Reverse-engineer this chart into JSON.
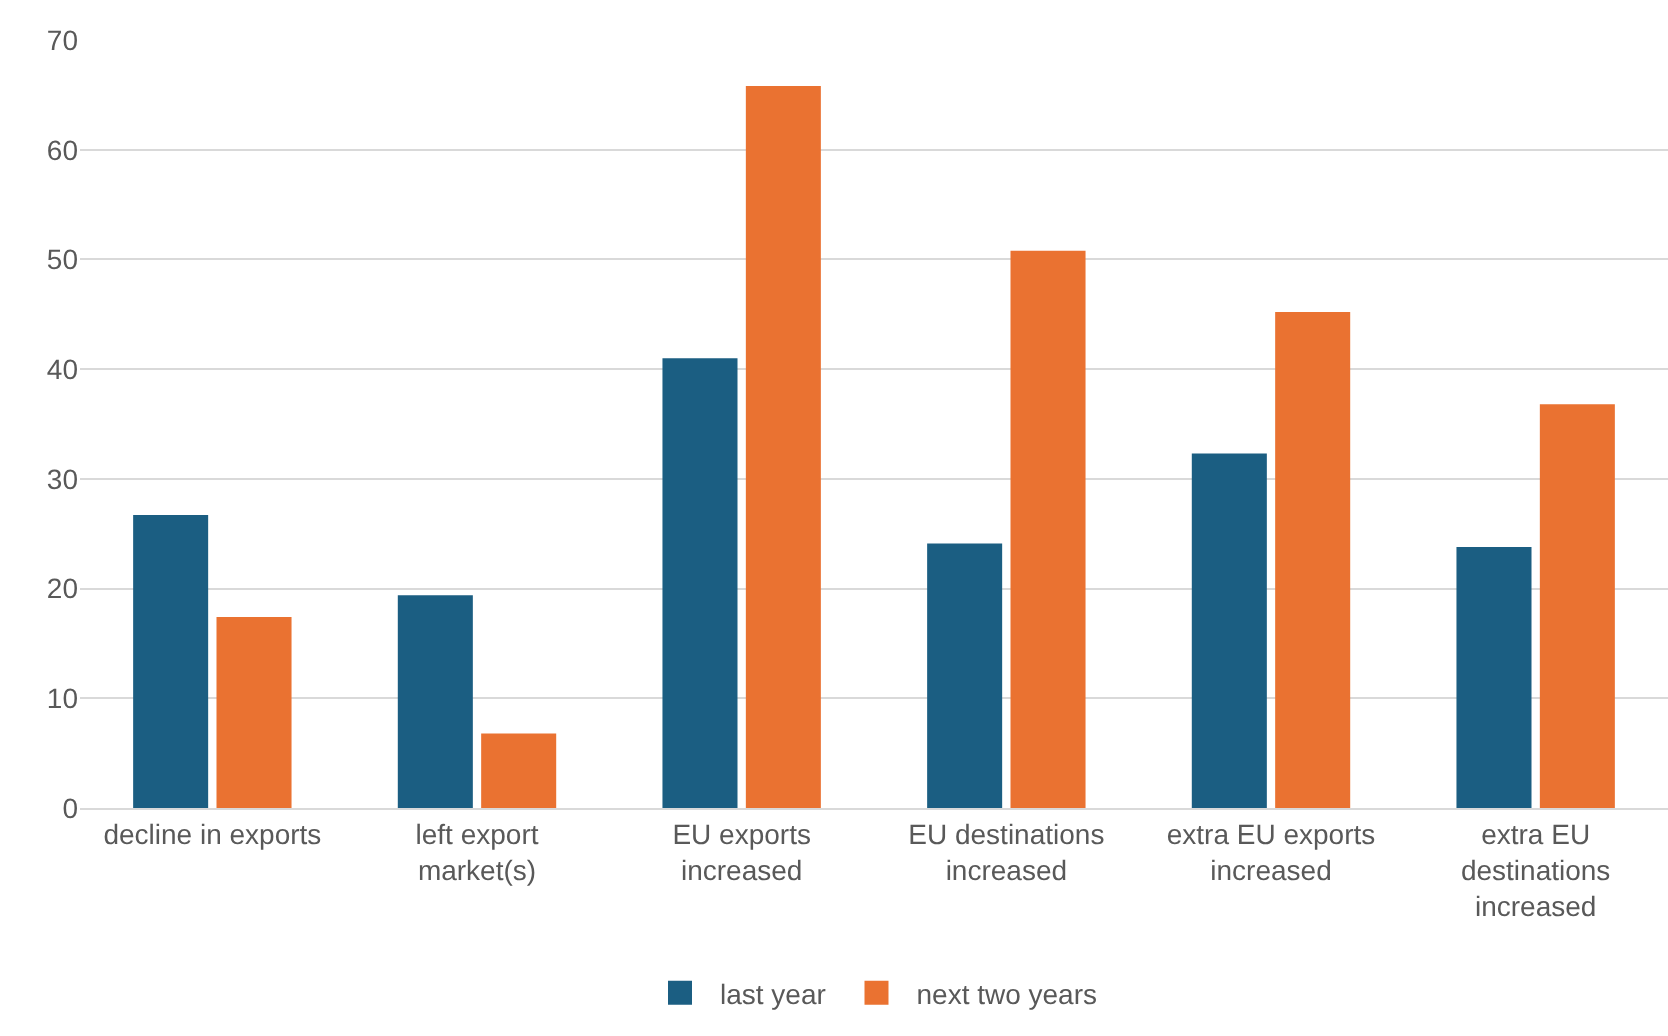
{
  "chart_data": {
    "type": "bar",
    "categories": [
      "decline in exports",
      "left export market(s)",
      "EU exports increased",
      "EU destinations increased",
      "extra EU exports increased",
      "extra EU destinations increased"
    ],
    "series": [
      {
        "name": "last year",
        "color": "#1b5e82",
        "values": [
          26.7,
          19.4,
          41,
          24.1,
          32.3,
          23.8
        ]
      },
      {
        "name": "next two years",
        "color": "#ea7231",
        "values": [
          17.4,
          6.8,
          65.8,
          50.8,
          45.2,
          36.8
        ]
      }
    ],
    "ylim": [
      0,
      70
    ],
    "yticks": [
      0,
      10,
      20,
      30,
      40,
      50,
      60,
      70
    ],
    "grid": "y",
    "legend": "bottom"
  }
}
